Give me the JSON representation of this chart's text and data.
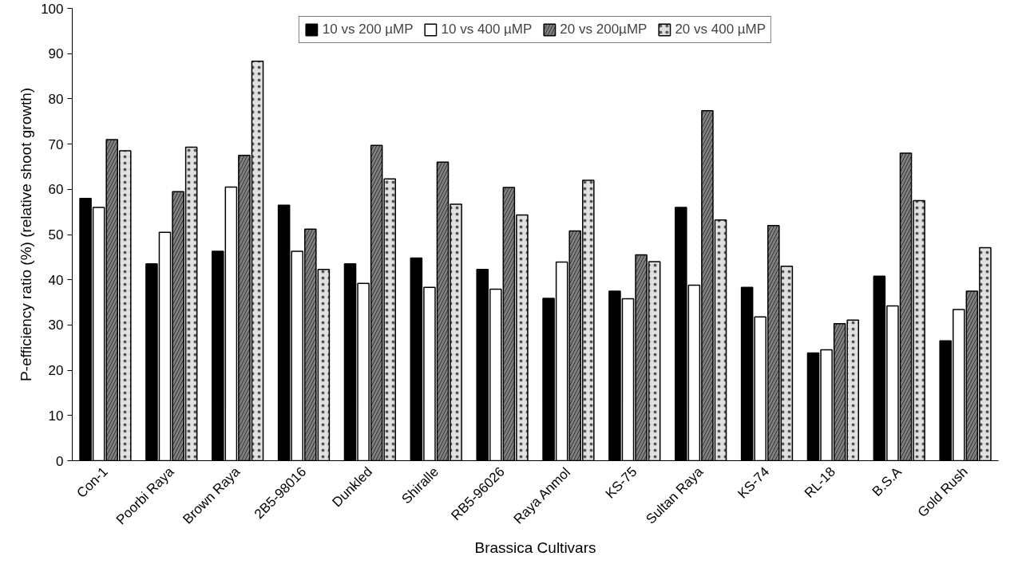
{
  "chart_data": {
    "type": "bar",
    "xlabel": "Brassica Cultivars",
    "ylabel": "P-efficiency ratio (%) (relative shoot growth)",
    "categories": [
      "Con-1",
      "Poorbi Raya",
      "Brown Raya",
      "2B5-98016",
      "Dunkled",
      "Shiralle",
      "RB5-96026",
      "Raya Anmol",
      "KS-75",
      "Sultan Raya",
      "KS-74",
      "RL-18",
      "B.S.A",
      "Gold Rush"
    ],
    "series": [
      {
        "name": "10 vs 200 µMP",
        "color": "#000000",
        "values": [
          58,
          43.5,
          46.3,
          56.5,
          43.5,
          44.8,
          42.3,
          35.9,
          37.5,
          56,
          38.3,
          23.8,
          40.8,
          26.5
        ]
      },
      {
        "name": "10 vs 400 µMP",
        "color": "#ffffff",
        "values": [
          56,
          50.5,
          60.5,
          46.3,
          39.2,
          38.3,
          37.9,
          43.9,
          35.8,
          38.8,
          31.8,
          24.5,
          34.2,
          33.4
        ]
      },
      {
        "name": "20 vs 200µMP",
        "color": "#808080",
        "values": [
          71,
          59.5,
          67.5,
          51.2,
          69.7,
          66,
          60.4,
          50.8,
          45.5,
          77.4,
          52,
          30.3,
          68,
          37.5
        ]
      },
      {
        "name": "20 vs 400 µMP",
        "color": "#e0e0e0",
        "values": [
          68.5,
          69.3,
          88.3,
          42.3,
          62.3,
          56.7,
          54.3,
          62,
          44,
          53.2,
          43,
          31.1,
          57.5,
          47.1
        ]
      }
    ],
    "ylim": [
      0,
      100
    ],
    "yticks": [
      0,
      10,
      20,
      30,
      40,
      50,
      60,
      70,
      80,
      90,
      100
    ],
    "grid": false,
    "legend": "top"
  }
}
